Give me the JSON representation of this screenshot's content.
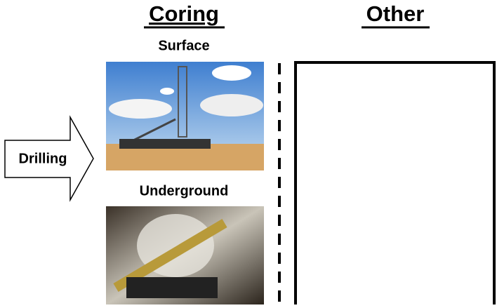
{
  "columns": {
    "coring": {
      "title": "Coring",
      "images": [
        {
          "label": "Surface"
        },
        {
          "label": "Underground"
        }
      ]
    },
    "other": {
      "title": "Other"
    }
  },
  "arrow": {
    "label": "Drilling"
  }
}
